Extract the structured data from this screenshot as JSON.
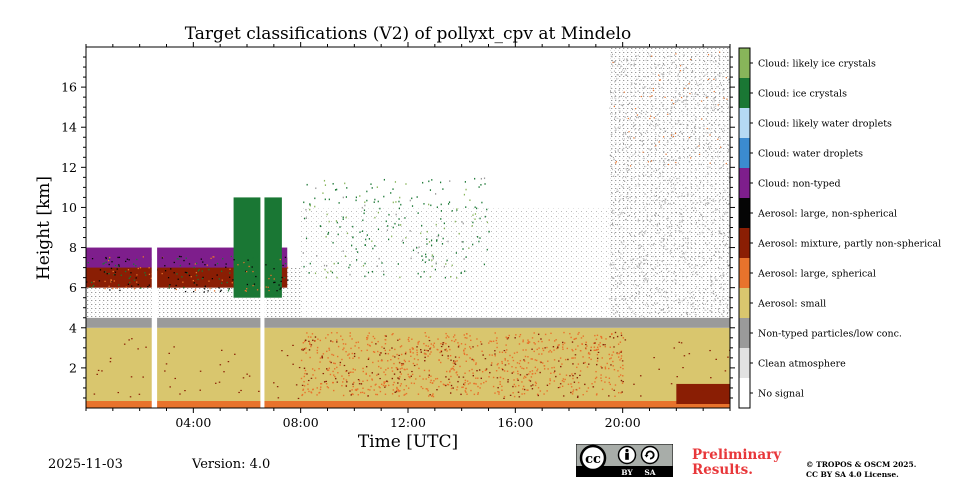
{
  "chart_data": {
    "type": "heatmap",
    "title": "Target classifications (V2) of pollyxt_cpv at Mindelo",
    "xlabel": "Time [UTC]",
    "ylabel": "Height [km]",
    "xlim_hours": [
      0,
      24
    ],
    "ylim_km": [
      0,
      18
    ],
    "x_tick_labels": [
      "04:00",
      "08:00",
      "12:00",
      "16:00",
      "20:00"
    ],
    "x_tick_hours": [
      4,
      8,
      12,
      16,
      20
    ],
    "y_tick_values": [
      2,
      4,
      6,
      8,
      10,
      12,
      14,
      16
    ],
    "colorbar_classes": [
      {
        "label": "No signal",
        "color": "#ffffff"
      },
      {
        "label": "Clean atmosphere",
        "color": "#e2e2e2"
      },
      {
        "label": "Non-typed particles/low conc.",
        "color": "#9a9a9a"
      },
      {
        "label": "Aerosol: small",
        "color": "#d9c66e"
      },
      {
        "label": "Aerosol: large, spherical",
        "color": "#e8732c"
      },
      {
        "label": "Aerosol: mixture, partly non-spherical",
        "color": "#8a1e04"
      },
      {
        "label": "Aerosol: large, non-spherical",
        "color": "#050505"
      },
      {
        "label": "Cloud: non-typed",
        "color": "#7e1e8c"
      },
      {
        "label": "Cloud: water droplets",
        "color": "#3b8bd0"
      },
      {
        "label": "Cloud: likely water droplets",
        "color": "#b5daf4"
      },
      {
        "label": "Cloud: ice crystals",
        "color": "#1a7734"
      },
      {
        "label": "Cloud: likely ice crystals",
        "color": "#88b55a"
      }
    ],
    "no_data_gaps_hours": [
      [
        2.45,
        2.65
      ],
      [
        6.5,
        6.65
      ]
    ],
    "regions": [
      {
        "class": "Aerosol: large, spherical",
        "t_start": 0,
        "t_end": 24,
        "h_bottom": 0,
        "h_top": 0.35
      },
      {
        "class": "Aerosol: small",
        "t_start": 0,
        "t_end": 24,
        "h_bottom": 0.35,
        "h_top": 4.0
      },
      {
        "class": "Non-typed particles/low conc.",
        "t_start": 0,
        "t_end": 24,
        "h_bottom": 4.0,
        "h_top": 4.5
      },
      {
        "class": "Clean atmosphere",
        "t_start": 0,
        "t_end": 8,
        "h_bottom": 4.5,
        "h_top": 7.0
      },
      {
        "class": "Aerosol: mixture, partly non-spherical",
        "t_start": 0,
        "t_end": 7.5,
        "h_bottom": 6.0,
        "h_top": 7.5
      },
      {
        "class": "Cloud: non-typed",
        "t_start": 0,
        "t_end": 7.5,
        "h_bottom": 7.0,
        "h_top": 8.0
      },
      {
        "class": "Cloud: ice crystals",
        "t_start": 5.5,
        "t_end": 7.3,
        "h_bottom": 5.5,
        "h_top": 10.5
      },
      {
        "class": "Clean atmosphere",
        "t_start": 19.5,
        "t_end": 24,
        "h_bottom": 4.5,
        "h_top": 18.0
      },
      {
        "class": "Aerosol: mixture, partly non-spherical",
        "t_start": 22.0,
        "t_end": 24,
        "h_bottom": 0.2,
        "h_top": 1.2
      }
    ]
  },
  "footer": {
    "date": "2025-11-03",
    "version": "Version: 4.0",
    "preliminary_line1": "Preliminary",
    "preliminary_line2": "Results.",
    "copyright_line1": "© TROPOS & OSCM 2025.",
    "copyright_line2": "CC BY SA 4.0 License.",
    "cc_badge": {
      "cc_text": "cc",
      "by_text": "BY",
      "sa_text": "SA"
    }
  }
}
